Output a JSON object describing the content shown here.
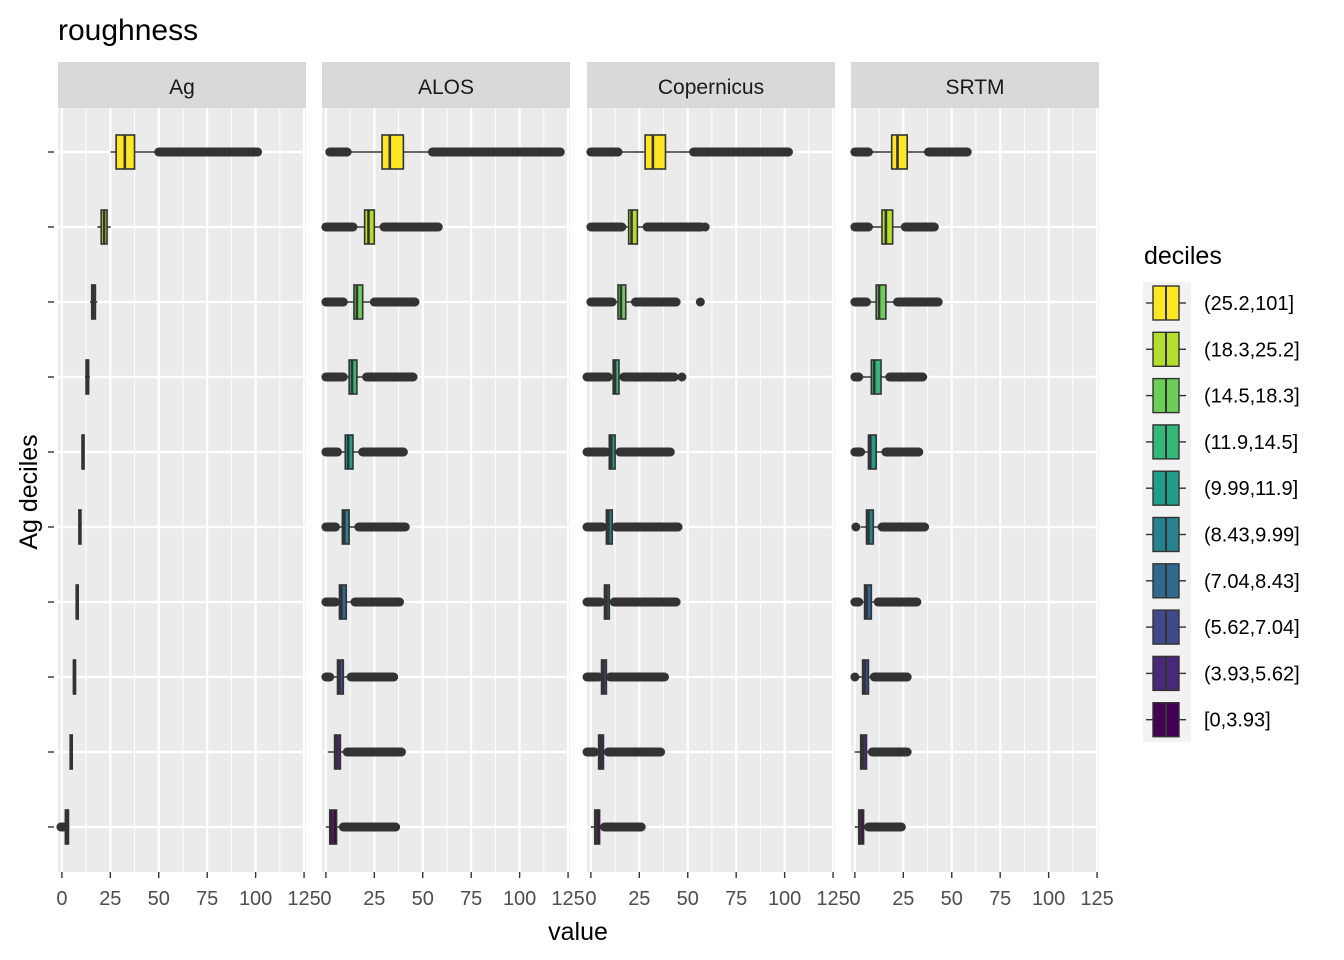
{
  "chart_data": {
    "type": "boxplot",
    "title": "roughness",
    "xlabel": "value",
    "ylabel": "Ag deciles",
    "xlim": [
      -2,
      126
    ],
    "x_ticks": [
      0,
      25,
      50,
      75,
      100,
      125
    ],
    "x_tick_labels": [
      "0",
      "25",
      "50",
      "75",
      "100",
      "125"
    ],
    "grid": true,
    "legend": {
      "title": "deciles",
      "position": "right",
      "items": [
        {
          "label": "(25.2,101]",
          "color": "#FDE725"
        },
        {
          "label": "(18.3,25.2]",
          "color": "#B4DE2C"
        },
        {
          "label": "(14.5,18.3]",
          "color": "#6DCD59"
        },
        {
          "label": "(11.9,14.5]",
          "color": "#35B779"
        },
        {
          "label": "(9.99,11.9]",
          "color": "#1F9E89"
        },
        {
          "label": "(8.43,9.99]",
          "color": "#26828E"
        },
        {
          "label": "(7.04,8.43]",
          "color": "#31688E"
        },
        {
          "label": "(5.62,7.04]",
          "color": "#3E4A89"
        },
        {
          "label": "(3.93,5.62]",
          "color": "#482878"
        },
        {
          "label": "[0,3.93]",
          "color": "#440154"
        }
      ]
    },
    "panels": [
      {
        "name": "Ag",
        "boxes": [
          {
            "decile": "(25.2,101]",
            "q1": 28,
            "median": 32.5,
            "q3": 37.5,
            "wmin": 25.2,
            "wmax": 50,
            "outlier_ranges": [
              [
                50,
                101
              ]
            ]
          },
          {
            "decile": "(18.3,25.2]",
            "q1": 20.3,
            "median": 21.8,
            "q3": 23.3,
            "wmin": 18.3,
            "wmax": 25.2,
            "outlier_ranges": []
          },
          {
            "decile": "(14.5,18.3]",
            "q1": 15.4,
            "median": 16.3,
            "q3": 17.3,
            "wmin": 14.5,
            "wmax": 18.3,
            "outlier_ranges": []
          },
          {
            "decile": "(11.9,14.5]",
            "q1": 12.5,
            "median": 13.2,
            "q3": 13.8,
            "wmin": 11.9,
            "wmax": 14.5,
            "outlier_ranges": []
          },
          {
            "decile": "(9.99,11.9]",
            "q1": 10.4,
            "median": 10.9,
            "q3": 11.4,
            "wmin": 9.99,
            "wmax": 11.9,
            "outlier_ranges": []
          },
          {
            "decile": "(8.43,9.99]",
            "q1": 8.8,
            "median": 9.2,
            "q3": 9.6,
            "wmin": 8.43,
            "wmax": 9.99,
            "outlier_ranges": []
          },
          {
            "decile": "(7.04,8.43]",
            "q1": 7.4,
            "median": 7.7,
            "q3": 8.1,
            "wmin": 7.04,
            "wmax": 8.43,
            "outlier_ranges": []
          },
          {
            "decile": "(5.62,7.04]",
            "q1": 6.0,
            "median": 6.3,
            "q3": 6.7,
            "wmin": 5.62,
            "wmax": 7.04,
            "outlier_ranges": []
          },
          {
            "decile": "(3.93,5.62]",
            "q1": 4.3,
            "median": 4.7,
            "q3": 5.1,
            "wmin": 3.93,
            "wmax": 5.62,
            "outlier_ranges": []
          },
          {
            "decile": "[0,3.93]",
            "q1": 1.8,
            "median": 2.7,
            "q3": 3.4,
            "wmin": 1.2,
            "wmax": 3.93,
            "outlier_ranges": [
              [
                -0.5,
                0.8
              ]
            ]
          }
        ]
      },
      {
        "name": "ALOS",
        "boxes": [
          {
            "decile": "(25.2,101]",
            "q1": 29,
            "median": 33,
            "q3": 40,
            "wmin": 11,
            "wmax": 55,
            "outlier_ranges": [
              [
                2,
                11
              ],
              [
                55,
                121
              ]
            ]
          },
          {
            "decile": "(18.3,25.2]",
            "q1": 20,
            "median": 22,
            "q3": 25,
            "wmin": 14,
            "wmax": 30,
            "outlier_ranges": [
              [
                0,
                14
              ],
              [
                30,
                58
              ]
            ]
          },
          {
            "decile": "(14.5,18.3]",
            "q1": 14.5,
            "median": 16,
            "q3": 19,
            "wmin": 9,
            "wmax": 25,
            "outlier_ranges": [
              [
                0,
                9
              ],
              [
                25,
                46
              ]
            ]
          },
          {
            "decile": "(11.9,14.5]",
            "q1": 12,
            "median": 13.5,
            "q3": 16,
            "wmin": 9,
            "wmax": 21,
            "outlier_ranges": [
              [
                0,
                9
              ],
              [
                21,
                45
              ]
            ]
          },
          {
            "decile": "(9.99,11.9]",
            "q1": 10,
            "median": 11.5,
            "q3": 14,
            "wmin": 8,
            "wmax": 19,
            "outlier_ranges": [
              [
                0,
                6
              ],
              [
                19,
                40
              ]
            ]
          },
          {
            "decile": "(8.43,9.99]",
            "q1": 8.5,
            "median": 9.5,
            "q3": 12,
            "wmin": 6,
            "wmax": 17,
            "outlier_ranges": [
              [
                0,
                5
              ],
              [
                17,
                41
              ]
            ]
          },
          {
            "decile": "(7.04,8.43]",
            "q1": 7,
            "median": 8,
            "q3": 10.5,
            "wmin": 5,
            "wmax": 15,
            "outlier_ranges": [
              [
                0,
                5
              ],
              [
                15,
                38
              ]
            ]
          },
          {
            "decile": "(5.62,7.04]",
            "q1": 6,
            "median": 7,
            "q3": 9,
            "wmin": 4,
            "wmax": 13,
            "outlier_ranges": [
              [
                0,
                2
              ],
              [
                13,
                35
              ]
            ]
          },
          {
            "decile": "(3.93,5.62]",
            "q1": 4.5,
            "median": 5.5,
            "q3": 7.5,
            "wmin": 1,
            "wmax": 11,
            "outlier_ranges": [
              [
                11,
                39
              ]
            ]
          },
          {
            "decile": "[0,3.93]",
            "q1": 2,
            "median": 3.5,
            "q3": 5.5,
            "wmin": 0,
            "wmax": 9,
            "outlier_ranges": [
              [
                9,
                36
              ]
            ]
          }
        ]
      },
      {
        "name": "Copernicus",
        "boxes": [
          {
            "decile": "(25.2,101]",
            "q1": 28,
            "median": 32,
            "q3": 38.5,
            "wmin": 14,
            "wmax": 53,
            "outlier_ranges": [
              [
                0,
                14
              ],
              [
                53,
                102
              ]
            ]
          },
          {
            "decile": "(18.3,25.2]",
            "q1": 19.5,
            "median": 21,
            "q3": 24,
            "wmin": 16,
            "wmax": 29,
            "outlier_ranges": [
              [
                0,
                16
              ],
              [
                29,
                57
              ],
              [
                59,
                59
              ]
            ]
          },
          {
            "decile": "(14.5,18.3]",
            "q1": 14,
            "median": 15.5,
            "q3": 18,
            "wmin": 11,
            "wmax": 23,
            "outlier_ranges": [
              [
                0,
                11
              ],
              [
                23,
                44
              ],
              [
                56,
                57
              ]
            ]
          },
          {
            "decile": "(11.9,14.5]",
            "q1": 11.5,
            "median": 12.5,
            "q3": 14.5,
            "wmin": 9,
            "wmax": 17,
            "outlier_ranges": [
              [
                -2,
                9
              ],
              [
                17,
                43
              ],
              [
                47,
                47
              ]
            ]
          },
          {
            "decile": "(9.99,11.9]",
            "q1": 9.5,
            "median": 10.5,
            "q3": 12.5,
            "wmin": 8,
            "wmax": 15,
            "outlier_ranges": [
              [
                -2,
                8
              ],
              [
                15,
                41
              ]
            ]
          },
          {
            "decile": "(8.43,9.99]",
            "q1": 8,
            "median": 9,
            "q3": 11,
            "wmin": 6,
            "wmax": 13,
            "outlier_ranges": [
              [
                -2,
                6
              ],
              [
                13,
                38
              ],
              [
                39,
                45
              ]
            ]
          },
          {
            "decile": "(7.04,8.43]",
            "q1": 7,
            "median": 8,
            "q3": 9.5,
            "wmin": 5,
            "wmax": 12,
            "outlier_ranges": [
              [
                -2,
                5
              ],
              [
                12,
                44
              ]
            ]
          },
          {
            "decile": "(5.62,7.04]",
            "q1": 5.5,
            "median": 6.5,
            "q3": 8,
            "wmin": 4,
            "wmax": 10,
            "outlier_ranges": [
              [
                -2,
                4
              ],
              [
                10,
                38
              ]
            ]
          },
          {
            "decile": "(3.93,5.62]",
            "q1": 4,
            "median": 5,
            "q3": 6.5,
            "wmin": 2,
            "wmax": 9,
            "outlier_ranges": [
              [
                -2,
                2
              ],
              [
                9,
                36
              ]
            ]
          },
          {
            "decile": "[0,3.93]",
            "q1": 2,
            "median": 3,
            "q3": 4.5,
            "wmin": 0,
            "wmax": 7,
            "outlier_ranges": [
              [
                7,
                26
              ]
            ]
          }
        ]
      },
      {
        "name": "SRTM",
        "boxes": [
          {
            "decile": "(25.2,101]",
            "q1": 19,
            "median": 22,
            "q3": 27,
            "wmin": 7,
            "wmax": 38,
            "outlier_ranges": [
              [
                0,
                7
              ],
              [
                38,
                58
              ]
            ]
          },
          {
            "decile": "(18.3,25.2]",
            "q1": 14,
            "median": 16,
            "q3": 19.5,
            "wmin": 7,
            "wmax": 26,
            "outlier_ranges": [
              [
                0,
                7
              ],
              [
                26,
                41
              ]
            ]
          },
          {
            "decile": "(14.5,18.3]",
            "q1": 11,
            "median": 12.5,
            "q3": 16,
            "wmin": 6,
            "wmax": 22,
            "outlier_ranges": [
              [
                0,
                6
              ],
              [
                22,
                43
              ]
            ]
          },
          {
            "decile": "(11.9,14.5]",
            "q1": 8.5,
            "median": 10,
            "q3": 13.5,
            "wmin": 4,
            "wmax": 18,
            "outlier_ranges": [
              [
                0,
                2
              ],
              [
                18,
                35
              ]
            ]
          },
          {
            "decile": "(9.99,11.9]",
            "q1": 7,
            "median": 8,
            "q3": 11,
            "wmin": 3,
            "wmax": 16,
            "outlier_ranges": [
              [
                0,
                3
              ],
              [
                16,
                33
              ]
            ]
          },
          {
            "decile": "(8.43,9.99]",
            "q1": 6,
            "median": 7,
            "q3": 9.5,
            "wmin": 3,
            "wmax": 14,
            "outlier_ranges": [
              [
                0,
                1
              ],
              [
                14,
                36
              ]
            ]
          },
          {
            "decile": "(7.04,8.43]",
            "q1": 5,
            "median": 6,
            "q3": 8.5,
            "wmin": 3,
            "wmax": 12,
            "outlier_ranges": [
              [
                0,
                2
              ],
              [
                12,
                32
              ]
            ]
          },
          {
            "decile": "(5.62,7.04]",
            "q1": 4,
            "median": 5,
            "q3": 7,
            "wmin": 2,
            "wmax": 10,
            "outlier_ranges": [
              [
                0,
                0
              ],
              [
                10,
                27
              ]
            ]
          },
          {
            "decile": "(3.93,5.62]",
            "q1": 3,
            "median": 4,
            "q3": 6,
            "wmin": 0,
            "wmax": 9,
            "outlier_ranges": [
              [
                9,
                27
              ]
            ]
          },
          {
            "decile": "[0,3.93]",
            "q1": 2,
            "median": 3,
            "q3": 4.5,
            "wmin": 0,
            "wmax": 7,
            "outlier_ranges": [
              [
                7,
                24
              ]
            ]
          }
        ]
      }
    ]
  }
}
